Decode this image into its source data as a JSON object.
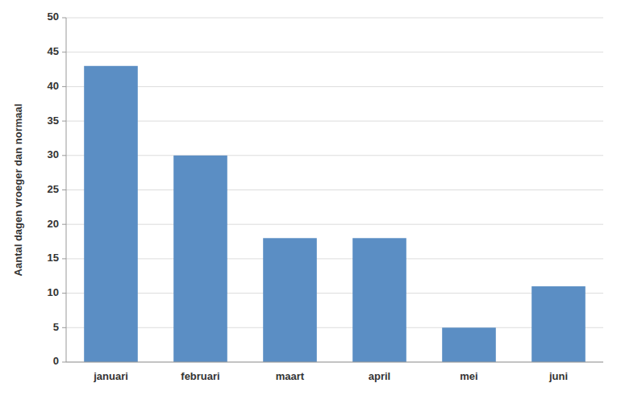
{
  "chart_data": {
    "type": "bar",
    "categories": [
      "januari",
      "februari",
      "maart",
      "april",
      "mei",
      "juni"
    ],
    "values": [
      43,
      30,
      18,
      18,
      5,
      11
    ],
    "color": "#5b8ec4",
    "ylabel": "Aantal dagen vroeger dan normaal",
    "ylim": [
      0,
      50
    ],
    "yticks": [
      0,
      5,
      10,
      15,
      20,
      25,
      30,
      35,
      40,
      45,
      50
    ],
    "grid": true
  }
}
